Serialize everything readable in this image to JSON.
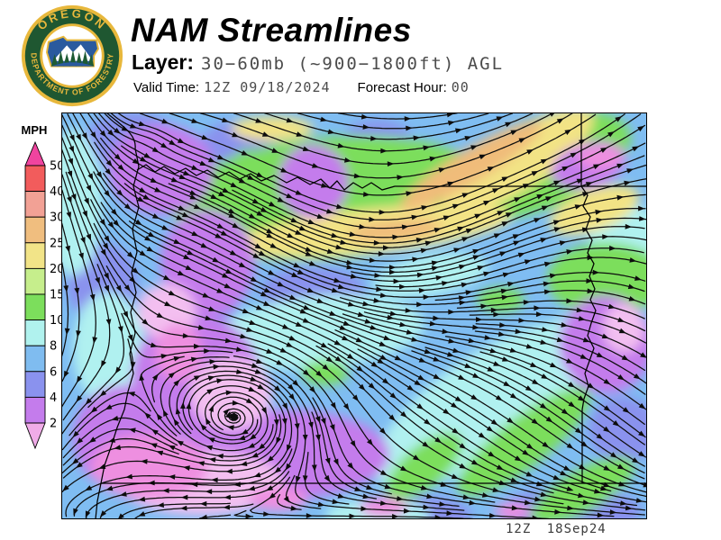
{
  "header": {
    "title": "NAM Streamlines",
    "layer_label": "Layer:",
    "layer_value": "30−60mb (~900−1800ft) AGL",
    "valid_time_label": "Valid Time:",
    "valid_time_value": "12Z 09/18/2024",
    "forecast_hour_label": "Forecast Hour:",
    "forecast_hour_value": "00"
  },
  "logo": {
    "text_top": "OREGON",
    "text_bottom": "DEPARTMENT OF FORESTRY",
    "ring_color": "#1F5731",
    "gold": "#E8B83C",
    "state_blue": "#2A5A9E",
    "tree_green": "#1E5B33"
  },
  "legend": {
    "title": "MPH",
    "ticks": [
      "50",
      "40",
      "30",
      "25",
      "20",
      "15",
      "10",
      "8",
      "6",
      "4",
      "2"
    ],
    "segment_colors_top_to_bottom": [
      "#F25C5C",
      "#F2A195",
      "#F0BE7F",
      "#F2E488",
      "#C6EE8C",
      "#7CDE5C",
      "#B0F2EE",
      "#7FBCF0",
      "#8A92EE",
      "#C47CEC"
    ],
    "above_max_color": "#F0449F",
    "below_min_color": "#F0ACE8"
  },
  "map": {
    "timestamp": "12Z 18Sep24",
    "base_color": "#7FBDF2",
    "streamline_color": "#0D0D0D",
    "border_color": "#000000",
    "palette": {
      "pw": "#8A92EE",
      "cy": "#B0F1F0",
      "gr": "#7CDE5C",
      "yl": "#F2E385",
      "or": "#F0BC7A",
      "pu": "#C47CEC",
      "pk": "#F3BFF0",
      "mg": "#EE8FE0"
    },
    "speed_blobs": [
      [
        12,
        7,
        8,
        7,
        0,
        "pw"
      ],
      [
        30,
        11,
        7,
        9,
        0,
        "pw"
      ],
      [
        47,
        19,
        11,
        8,
        0,
        "pw"
      ],
      [
        7,
        42,
        6,
        10,
        0,
        "pw"
      ],
      [
        87,
        98,
        12,
        6,
        0,
        "pw"
      ],
      [
        60,
        99,
        10,
        5,
        0,
        "pw"
      ],
      [
        22,
        48,
        8,
        6,
        0,
        "pw"
      ],
      [
        96,
        78,
        6,
        8,
        0,
        "pw"
      ],
      [
        13,
        64,
        5,
        9,
        0,
        "pw"
      ],
      [
        54,
        7,
        6,
        5,
        0,
        "pw"
      ],
      [
        43,
        44,
        9,
        6,
        0,
        "pw"
      ],
      [
        2,
        22,
        5,
        18,
        0,
        "cy"
      ],
      [
        44,
        54,
        18,
        9,
        -5,
        "cy"
      ],
      [
        72,
        72,
        22,
        12,
        -35,
        "cy"
      ],
      [
        57,
        24,
        8,
        7,
        0,
        "cy"
      ],
      [
        97,
        32,
        7,
        9,
        0,
        "cy"
      ],
      [
        88,
        55,
        8,
        6,
        -20,
        "cy"
      ],
      [
        8,
        58,
        6,
        14,
        0,
        "cy"
      ],
      [
        63,
        40,
        10,
        5,
        -10,
        "cy"
      ],
      [
        54,
        99,
        9,
        4,
        0,
        "cy"
      ],
      [
        37,
        16,
        4,
        7,
        0,
        "cy"
      ],
      [
        46,
        21,
        27,
        15,
        -5,
        "gr"
      ],
      [
        81,
        13,
        17,
        11,
        -20,
        "gr"
      ],
      [
        93,
        41,
        10,
        9,
        0,
        "gr"
      ],
      [
        79,
        81,
        14,
        6,
        -38,
        "gr"
      ],
      [
        89,
        93,
        10,
        5,
        -30,
        "gr"
      ],
      [
        62,
        87,
        8,
        5,
        -40,
        "gr"
      ],
      [
        32,
        13,
        3,
        4,
        0,
        "gr"
      ],
      [
        45,
        64,
        4,
        3,
        0,
        "gr"
      ],
      [
        75,
        46,
        4,
        3,
        0,
        "gr"
      ],
      [
        53,
        29,
        24,
        5.5,
        -6,
        "yl"
      ],
      [
        78,
        12,
        15,
        7,
        -33,
        "yl"
      ],
      [
        36,
        4,
        7,
        3,
        0,
        "yl"
      ],
      [
        91,
        24,
        8,
        5,
        -20,
        "yl"
      ],
      [
        70,
        13,
        14,
        4,
        -31,
        "or"
      ],
      [
        57,
        29,
        8,
        2.5,
        -5,
        "or"
      ],
      [
        17,
        14,
        9,
        11,
        0,
        "pu"
      ],
      [
        25,
        37,
        8,
        13,
        0,
        "pu"
      ],
      [
        23,
        65,
        11,
        15,
        0,
        "pu"
      ],
      [
        90,
        13,
        6.5,
        5.5,
        -15,
        "pu"
      ],
      [
        93,
        57,
        8,
        12,
        0,
        "pu"
      ],
      [
        38,
        84,
        18,
        11,
        0,
        "pu"
      ],
      [
        11,
        80,
        9,
        13,
        0,
        "pu"
      ],
      [
        43,
        17,
        6,
        9,
        0,
        "pu"
      ],
      [
        24,
        91,
        14,
        8,
        0,
        "pk"
      ],
      [
        29,
        69,
        7,
        9,
        0,
        "pk"
      ],
      [
        18,
        49,
        5,
        7,
        0,
        "pk"
      ],
      [
        96,
        53,
        3.5,
        6,
        0,
        "pk"
      ],
      [
        15,
        87,
        10,
        8,
        0,
        "mg"
      ],
      [
        20,
        59,
        4,
        7,
        0,
        "mg"
      ],
      [
        92,
        11,
        4,
        3,
        0,
        "mg"
      ],
      [
        55,
        97,
        4,
        2.5,
        0,
        "mg"
      ],
      [
        77,
        98,
        3,
        2,
        0,
        "mg"
      ],
      [
        37,
        95,
        5,
        3,
        0,
        "mg"
      ]
    ]
  }
}
